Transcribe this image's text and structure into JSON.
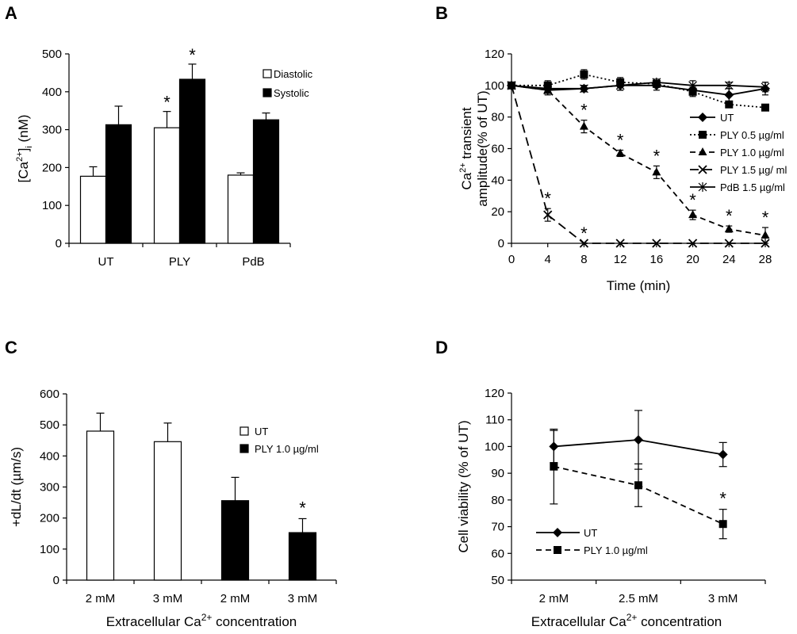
{
  "chart_data": [
    {
      "panel": "A",
      "type": "bar",
      "categories": [
        "UT",
        "PLY",
        "PdB"
      ],
      "ylabel_main": "[Ca",
      "ylabel_sup": "2+",
      "ylabel_after_sup": "]",
      "ylabel_sub": "i",
      "ylabel_end": " (nM)",
      "ylim": [
        0,
        500
      ],
      "yticks": [
        0,
        100,
        200,
        300,
        400,
        500
      ],
      "series": [
        {
          "name": "Diastolic",
          "color": "#ffffff",
          "values": [
            177,
            305,
            180
          ],
          "errors": [
            25,
            43,
            6
          ]
        },
        {
          "name": "Systolic",
          "color": "#000000",
          "values": [
            313,
            433,
            326
          ],
          "errors": [
            49,
            40,
            18
          ]
        }
      ],
      "annotations": [
        {
          "series": 0,
          "index": 1,
          "text": "*"
        },
        {
          "series": 1,
          "index": 1,
          "text": "*"
        }
      ]
    },
    {
      "panel": "B",
      "type": "line",
      "x": [
        0,
        4,
        8,
        12,
        16,
        20,
        24,
        28
      ],
      "xlabel": "Time (min)",
      "ylabel_line1_pre": "Ca",
      "ylabel_line1_sup": "2+",
      "ylabel_line1_post": " transient",
      "ylabel_line2": "amplitude(% of UT)",
      "xlim": [
        0,
        28
      ],
      "ylim": [
        0,
        120
      ],
      "yticks": [
        0,
        20,
        40,
        60,
        80,
        100,
        120
      ],
      "xticks": [
        0,
        4,
        8,
        12,
        16,
        20,
        24,
        28
      ],
      "series": [
        {
          "name": "UT",
          "marker": "diamond",
          "dash": "solid",
          "values": [
            100,
            98,
            98,
            100,
            100,
            97,
            94,
            98
          ],
          "errors": [
            2,
            3,
            2,
            3,
            3,
            3,
            4,
            4
          ]
        },
        {
          "name": "PLY 0.5 µg/ml",
          "marker": "square",
          "dash": "dotted",
          "values": [
            100,
            100,
            107,
            102,
            101,
            96,
            88,
            86
          ],
          "errors": [
            2,
            3,
            3,
            3,
            2,
            3,
            2,
            1
          ]
        },
        {
          "name": "PLY 1.0 µg/ml",
          "marker": "triangle",
          "dash": "dashed",
          "values": [
            100,
            97,
            74,
            57,
            45,
            18,
            9,
            5
          ],
          "errors": [
            2,
            3,
            4,
            2,
            4,
            3,
            2,
            5
          ]
        },
        {
          "name": "PLY 1.5 µg/ ml",
          "marker": "x",
          "dash": "longdash",
          "values": [
            100,
            18,
            0,
            0,
            0,
            0,
            0,
            0
          ],
          "errors": [
            2,
            4,
            0,
            0,
            0,
            0,
            0,
            0
          ]
        },
        {
          "name": "PdB 1.5 µg/ml",
          "marker": "star",
          "dash": "solid",
          "values": [
            100,
            97,
            98,
            100,
            102,
            100,
            100,
            99
          ],
          "errors": [
            2,
            2,
            2,
            3,
            2,
            3,
            2,
            3
          ]
        }
      ],
      "annotations": [
        {
          "series": 3,
          "index": 1,
          "text": "*"
        },
        {
          "series": 3,
          "index": 2,
          "text": "*"
        },
        {
          "series": 2,
          "index": 2,
          "text": "*"
        },
        {
          "series": 2,
          "index": 3,
          "text": "*"
        },
        {
          "series": 2,
          "index": 4,
          "text": "*"
        },
        {
          "series": 2,
          "index": 5,
          "text": "*"
        },
        {
          "series": 2,
          "index": 6,
          "text": "*"
        },
        {
          "series": 2,
          "index": 7,
          "text": "*"
        }
      ]
    },
    {
      "panel": "C",
      "type": "bar",
      "categories": [
        "2 mM",
        "3 mM",
        "2 mM",
        "3 mM"
      ],
      "values": [
        480,
        446,
        256,
        153
      ],
      "errors": [
        58,
        60,
        75,
        45
      ],
      "colors": [
        "#ffffff",
        "#ffffff",
        "#000000",
        "#000000"
      ],
      "ylabel": "+dL/dt (µm/s)",
      "xlabel_pre": "Extracellular Ca",
      "xlabel_sup": "2+",
      "xlabel_post": " concentration",
      "ylim": [
        0,
        600
      ],
      "yticks": [
        0,
        100,
        200,
        300,
        400,
        500,
        600
      ],
      "legend": [
        {
          "name": "UT",
          "color": "#ffffff"
        },
        {
          "name": "PLY 1.0 µg/ml",
          "color": "#000000"
        }
      ],
      "annotations": [
        {
          "index": 3,
          "text": "*"
        }
      ]
    },
    {
      "panel": "D",
      "type": "line",
      "categories": [
        "2 mM",
        "2.5 mM",
        "3 mM"
      ],
      "ylabel": "Cell viability (% of UT)",
      "xlabel_pre": "Extracellular Ca",
      "xlabel_sup": "2+",
      "xlabel_post": " concentration",
      "ylim": [
        50,
        120
      ],
      "yticks": [
        50,
        60,
        70,
        80,
        90,
        100,
        110,
        120
      ],
      "series": [
        {
          "name": "UT",
          "marker": "diamond",
          "dash": "solid",
          "values": [
            100,
            102.5,
            97
          ],
          "errors": [
            6,
            11,
            4.5
          ]
        },
        {
          "name": "PLY 1.0 µg/ml",
          "marker": "square",
          "dash": "dashed",
          "values": [
            92.5,
            85.5,
            71
          ],
          "errors": [
            14,
            8,
            5.5
          ]
        }
      ],
      "annotations": [
        {
          "series": 1,
          "index": 2,
          "text": "*"
        }
      ]
    }
  ]
}
